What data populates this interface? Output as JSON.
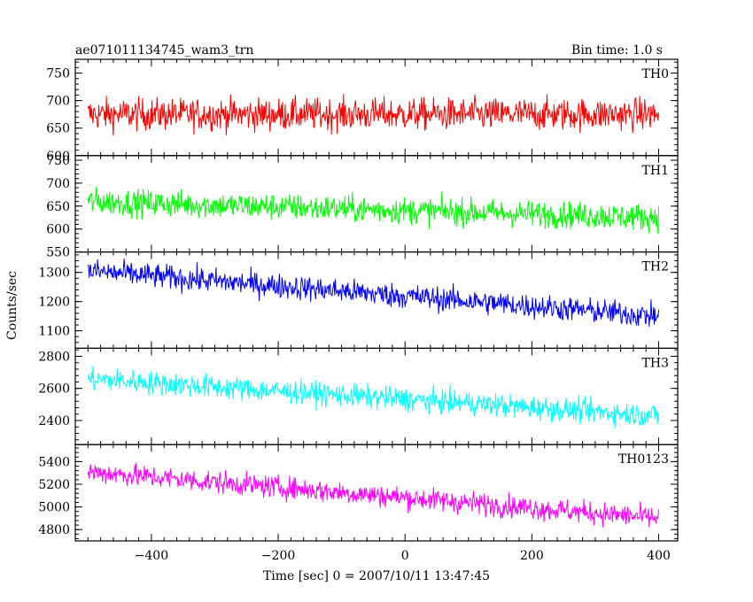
{
  "header": {
    "left_title": "ae071011134745_wam3_trn",
    "right_title": "Bin time: 1.0 s"
  },
  "chart_data": {
    "type": "line",
    "title": "ae071011134745_wam3_trn",
    "subtitle": "Bin time: 1.0 s",
    "xlabel": "Time [sec] 0 = 2007/10/11 13:47:45",
    "ylabel": "Counts/sec",
    "xlim": [
      -520,
      430
    ],
    "x_ticks": [
      -400,
      -200,
      0,
      200,
      400
    ],
    "x_range_data": [
      -500,
      400
    ],
    "grid": false,
    "panels": [
      {
        "name": "TH0",
        "color": "#ff0000",
        "ylim": [
          600,
          775
        ],
        "y_ticks": [
          600,
          650,
          700,
          750
        ],
        "trend_start": 675,
        "trend_end": 675,
        "noise_amplitude": 38
      },
      {
        "name": "TH1",
        "color": "#00ff00",
        "ylim": [
          550,
          760
        ],
        "y_ticks": [
          550,
          600,
          650,
          700,
          750
        ],
        "trend_start": 660,
        "trend_end": 625,
        "noise_amplitude": 38
      },
      {
        "name": "TH2",
        "color": "#0000ff",
        "ylim": [
          1040,
          1370
        ],
        "y_ticks": [
          1100,
          1200,
          1300
        ],
        "trend_start": 1305,
        "trend_end": 1150,
        "noise_amplitude": 55
      },
      {
        "name": "TH3",
        "color": "#00ffff",
        "ylim": [
          2250,
          2850
        ],
        "y_ticks": [
          2400,
          2600,
          2800
        ],
        "trend_start": 2660,
        "trend_end": 2430,
        "noise_amplitude": 95
      },
      {
        "name": "TH0123",
        "color": "#ff00ff",
        "ylim": [
          4700,
          5550
        ],
        "y_ticks": [
          4800,
          5000,
          5200,
          5400
        ],
        "trend_start": 5310,
        "trend_end": 4900,
        "noise_amplitude": 130
      }
    ]
  }
}
